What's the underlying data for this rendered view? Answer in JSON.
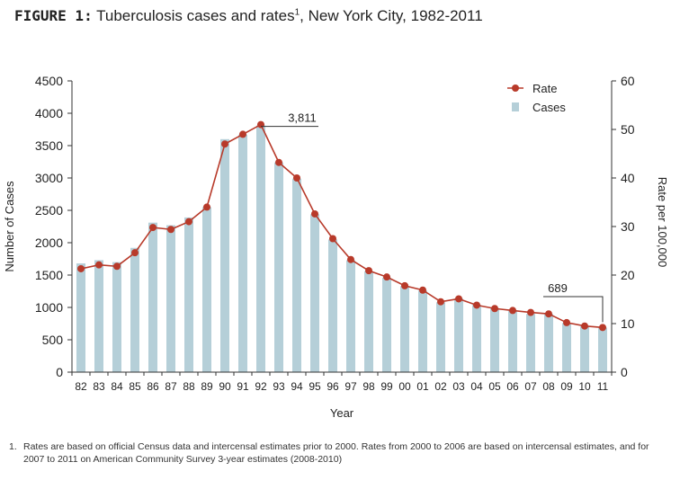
{
  "figure": {
    "label": "FIGURE 1:",
    "title": "Tuberculosis cases and rates",
    "title_sup": "1",
    "title_rest": ", New York City, 1982-2011"
  },
  "footnote": {
    "number": "1.",
    "text": "Rates are based on official Census data and intercensal estimates prior to 2000. Rates from 2000 to 2006 are based on intercensal estimates, and for 2007 to 2011 on American Community Survey 3-year estimates (2008-2010)"
  },
  "colors": {
    "bar": "#b5cfd8",
    "line": "#b83a2a",
    "axis": "#333333"
  },
  "chart_data": {
    "type": "bar",
    "categories": [
      "82",
      "83",
      "84",
      "85",
      "86",
      "87",
      "88",
      "89",
      "90",
      "91",
      "92",
      "93",
      "94",
      "95",
      "96",
      "97",
      "98",
      "99",
      "00",
      "01",
      "02",
      "03",
      "04",
      "05",
      "06",
      "07",
      "08",
      "09",
      "10",
      "11"
    ],
    "series": [
      {
        "name": "Cases",
        "type": "bar",
        "axis": "left",
        "values": [
          1680,
          1730,
          1700,
          1920,
          2310,
          2270,
          2390,
          2550,
          3600,
          3670,
          3811,
          3240,
          2990,
          2440,
          2050,
          1730,
          1560,
          1460,
          1330,
          1260,
          1080,
          1140,
          1040,
          990,
          950,
          900,
          900,
          760,
          710,
          689
        ]
      },
      {
        "name": "Rate",
        "type": "line",
        "axis": "right",
        "values": [
          21.3,
          22.1,
          21.8,
          24.6,
          29.8,
          29.4,
          31.0,
          34.0,
          47.0,
          49.0,
          51.0,
          43.2,
          40.0,
          32.6,
          27.5,
          23.2,
          20.9,
          19.6,
          17.8,
          16.9,
          14.5,
          15.1,
          13.8,
          13.1,
          12.7,
          12.3,
          12.0,
          10.2,
          9.5,
          9.2
        ]
      }
    ],
    "xlabel": "Year",
    "ylabel": "Number of Cases",
    "y2label": "Rate per 100,000",
    "ylim": [
      0,
      4500
    ],
    "y2lim": [
      0,
      60
    ],
    "yticks": [
      "0",
      "500",
      "1000",
      "1500",
      "2000",
      "2500",
      "3000",
      "3500",
      "4000",
      "4500"
    ],
    "y2ticks": [
      "0",
      "10",
      "20",
      "30",
      "40",
      "50",
      "60"
    ],
    "legend": {
      "position": "top-right",
      "entries": [
        "Rate",
        "Cases"
      ]
    },
    "annotations": [
      {
        "text": "3,811",
        "category": "92",
        "value": 3811
      },
      {
        "text": "689",
        "category": "11",
        "value": 689
      }
    ],
    "grid": false
  }
}
